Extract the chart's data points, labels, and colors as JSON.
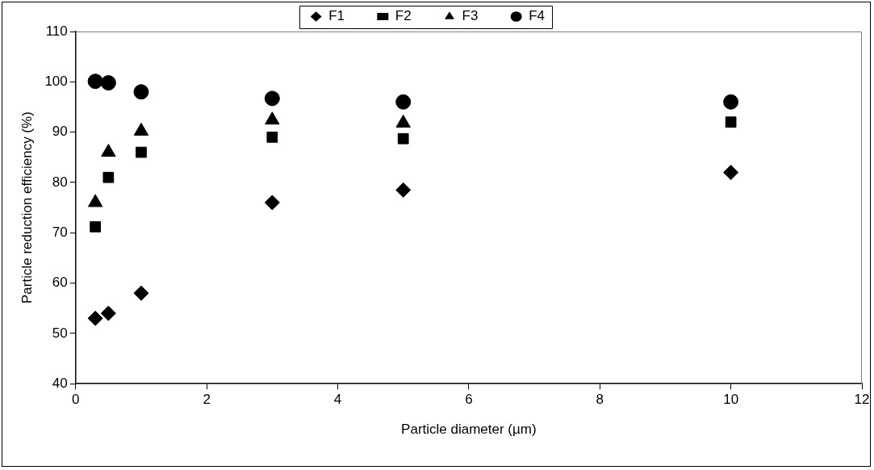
{
  "chart_data": {
    "type": "scatter",
    "xlabel": "Particle diameter (µm)",
    "ylabel": "Particle reduction efficiency (%)",
    "x": [
      0.3,
      0.5,
      1,
      3,
      5,
      10
    ],
    "series": [
      {
        "name": "F1",
        "color": "#000000",
        "marker": "diamond",
        "values": [
          53,
          54,
          58,
          76,
          78.5,
          82
        ]
      },
      {
        "name": "F2",
        "color": "#000000",
        "marker": "square",
        "values": [
          71.2,
          81,
          86,
          89,
          88.7,
          92
        ]
      },
      {
        "name": "F3",
        "color": "#000000",
        "marker": "triangle",
        "values": [
          76,
          86,
          90.2,
          92.4,
          91.8,
          null
        ]
      },
      {
        "name": "F4",
        "color": "#000000",
        "marker": "circle",
        "values": [
          100.1,
          99.8,
          98,
          96.7,
          96,
          96
        ]
      }
    ],
    "xlim": [
      0,
      12
    ],
    "xticks": [
      0,
      2,
      4,
      6,
      8,
      10,
      12
    ],
    "ylim": [
      40,
      110
    ],
    "yticks": [
      40,
      50,
      60,
      70,
      80,
      90,
      100,
      110
    ],
    "grid": false,
    "legend": "top"
  }
}
